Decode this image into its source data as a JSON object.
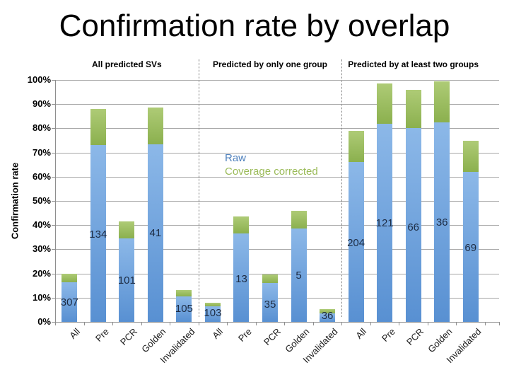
{
  "title": "Confirmation rate by overlap",
  "chart_data": {
    "type": "bar",
    "stacked": true,
    "grid": true,
    "title": "Confirmation rate by overlap",
    "ylabel": "Confirmation rate",
    "ylim": [
      0,
      100
    ],
    "yticks": [
      "0%",
      "10%",
      "20%",
      "30%",
      "40%",
      "50%",
      "60%",
      "70%",
      "80%",
      "90%",
      "100%"
    ],
    "categories": [
      "All",
      "Pre",
      "PCR",
      "Golden",
      "Invalidated"
    ],
    "legend": {
      "position": "middle-panel-center",
      "entries": [
        {
          "label": "Raw",
          "color": "#4f81bd"
        },
        {
          "label": "Coverage corrected",
          "color": "#9bbb59"
        }
      ]
    },
    "series_meaning": {
      "blue_segment": "Raw confirmation rate (%)",
      "green_segment": "Coverage corrected confirmation rate (%)",
      "number_on_bar": "count of SVs"
    },
    "panels": [
      {
        "header": "All predicted SVs",
        "bars": [
          {
            "category": "All",
            "raw_pct": 16.5,
            "corrected_pct": 20,
            "count_label": "307",
            "label_y_pct": 8
          },
          {
            "category": "Pre",
            "raw_pct": 73,
            "corrected_pct": 88,
            "count_label": "134",
            "label_y_pct": 36
          },
          {
            "category": "PCR",
            "raw_pct": 34.5,
            "corrected_pct": 41.5,
            "count_label": "101",
            "label_y_pct": 17
          },
          {
            "category": "Golden",
            "raw_pct": 73.5,
            "corrected_pct": 88.5,
            "count_label": "41",
            "label_y_pct": 36.5
          },
          {
            "category": "Invalidated",
            "raw_pct": 10.5,
            "corrected_pct": 13.2,
            "count_label": "105",
            "label_y_pct": 5.3
          }
        ]
      },
      {
        "header": "Predicted by only one group",
        "bars": [
          {
            "category": "All",
            "raw_pct": 6.5,
            "corrected_pct": 8,
            "count_label": "103",
            "label_y_pct": 3.5
          },
          {
            "category": "Pre",
            "raw_pct": 36.5,
            "corrected_pct": 43.5,
            "count_label": "13",
            "label_y_pct": 17.5
          },
          {
            "category": "PCR",
            "raw_pct": 16,
            "corrected_pct": 19.5,
            "count_label": "35",
            "label_y_pct": 7
          },
          {
            "category": "Golden",
            "raw_pct": 38.5,
            "corrected_pct": 46,
            "count_label": "5",
            "label_y_pct": 19
          },
          {
            "category": "Invalidated",
            "raw_pct": 3.5,
            "corrected_pct": 5.2,
            "count_label": "36",
            "label_y_pct": 2.2
          }
        ]
      },
      {
        "header": "Predicted by at least two groups",
        "bars": [
          {
            "category": "All",
            "raw_pct": 66,
            "corrected_pct": 79,
            "count_label": "204",
            "label_y_pct": 32.5
          },
          {
            "category": "Pre",
            "raw_pct": 82,
            "corrected_pct": 98.5,
            "count_label": "121",
            "label_y_pct": 40.5
          },
          {
            "category": "PCR",
            "raw_pct": 80,
            "corrected_pct": 96,
            "count_label": "66",
            "label_y_pct": 39
          },
          {
            "category": "Golden",
            "raw_pct": 82.5,
            "corrected_pct": 99.5,
            "count_label": "36",
            "label_y_pct": 41
          },
          {
            "category": "Invalidated",
            "raw_pct": 62,
            "corrected_pct": 75,
            "count_label": "69",
            "label_y_pct": 30.5
          }
        ]
      }
    ],
    "colors": {
      "raw_fill_top": "#8cb8e8",
      "raw_fill_bottom": "#5890d2",
      "corrected_fill_top": "#aecb76",
      "corrected_fill_bottom": "#8bb04e",
      "raw_legend_text": "#4f81bd",
      "corrected_legend_text": "#9bbb59",
      "gridline": "#a6a6a6",
      "axis": "#8e8e8e",
      "panel_divider": "#7a7a7a",
      "count_label_text": "#1d2c44"
    }
  }
}
